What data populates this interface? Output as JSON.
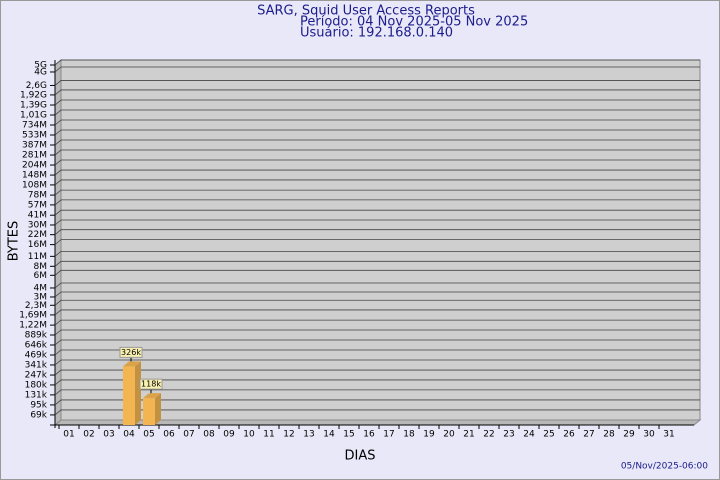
{
  "chart_data": {
    "type": "bar",
    "title": "SARG, Squid User Access Reports",
    "subtitle": "Período: 04 Nov 2025-05 Nov 2025",
    "user": "Usuário: 192.168.0.140",
    "x_label": "DIAS",
    "y_label": "BYTES",
    "footer": "05/Nov/2025-06:00",
    "categories": [
      "01",
      "02",
      "03",
      "04",
      "05",
      "06",
      "07",
      "08",
      "09",
      "10",
      "11",
      "12",
      "13",
      "14",
      "15",
      "16",
      "17",
      "18",
      "19",
      "20",
      "21",
      "22",
      "23",
      "24",
      "25",
      "26",
      "27",
      "28",
      "29",
      "30",
      "31"
    ],
    "values": [
      null,
      null,
      null,
      326000,
      118000,
      null,
      null,
      null,
      null,
      null,
      null,
      null,
      null,
      null,
      null,
      null,
      null,
      null,
      null,
      null,
      null,
      null,
      null,
      null,
      null,
      null,
      null,
      null,
      null,
      null,
      null
    ],
    "value_labels": [
      null,
      null,
      null,
      "326k",
      "118k",
      null,
      null,
      null,
      null,
      null,
      null,
      null,
      null,
      null,
      null,
      null,
      null,
      null,
      null,
      null,
      null,
      null,
      null,
      null,
      null,
      null,
      null,
      null,
      null,
      null,
      null
    ],
    "color": "#f2b552",
    "log_scale": true,
    "grid": true,
    "ylim": [
      50000,
      5000000000
    ],
    "yticks": [
      {
        "value": 5000000000,
        "label": "5G"
      },
      {
        "value": 4000000000,
        "label": "4G"
      },
      {
        "value": 2600000000,
        "label": "2,6G"
      },
      {
        "value": 1920000000,
        "label": "1,92G"
      },
      {
        "value": 1390000000,
        "label": "1,39G"
      },
      {
        "value": 1010000000,
        "label": "1,01G"
      },
      {
        "value": 734000000,
        "label": "734M"
      },
      {
        "value": 533000000,
        "label": "533M"
      },
      {
        "value": 387000000,
        "label": "387M"
      },
      {
        "value": 281000000,
        "label": "281M"
      },
      {
        "value": 204000000,
        "label": "204M"
      },
      {
        "value": 148000000,
        "label": "148M"
      },
      {
        "value": 108000000,
        "label": "108M"
      },
      {
        "value": 78000000,
        "label": "78M"
      },
      {
        "value": 57000000,
        "label": "57M"
      },
      {
        "value": 41000000,
        "label": "41M"
      },
      {
        "value": 30000000,
        "label": "30M"
      },
      {
        "value": 22000000,
        "label": "22M"
      },
      {
        "value": 16000000,
        "label": "16M"
      },
      {
        "value": 11000000,
        "label": "11M"
      },
      {
        "value": 8000000,
        "label": "8M"
      },
      {
        "value": 6000000,
        "label": "6M"
      },
      {
        "value": 4000000,
        "label": "4M"
      },
      {
        "value": 3000000,
        "label": "3M"
      },
      {
        "value": 2300000,
        "label": "2,3M"
      },
      {
        "value": 1690000,
        "label": "1,69M"
      },
      {
        "value": 1220000,
        "label": "1,22M"
      },
      {
        "value": 889000,
        "label": "889k"
      },
      {
        "value": 646000,
        "label": "646k"
      },
      {
        "value": 469000,
        "label": "469k"
      },
      {
        "value": 341000,
        "label": "341k"
      },
      {
        "value": 247000,
        "label": "247k"
      },
      {
        "value": 180000,
        "label": "180k"
      },
      {
        "value": 131000,
        "label": "131k"
      },
      {
        "value": 95000,
        "label": "95k"
      },
      {
        "value": 69000,
        "label": "69k"
      }
    ]
  }
}
